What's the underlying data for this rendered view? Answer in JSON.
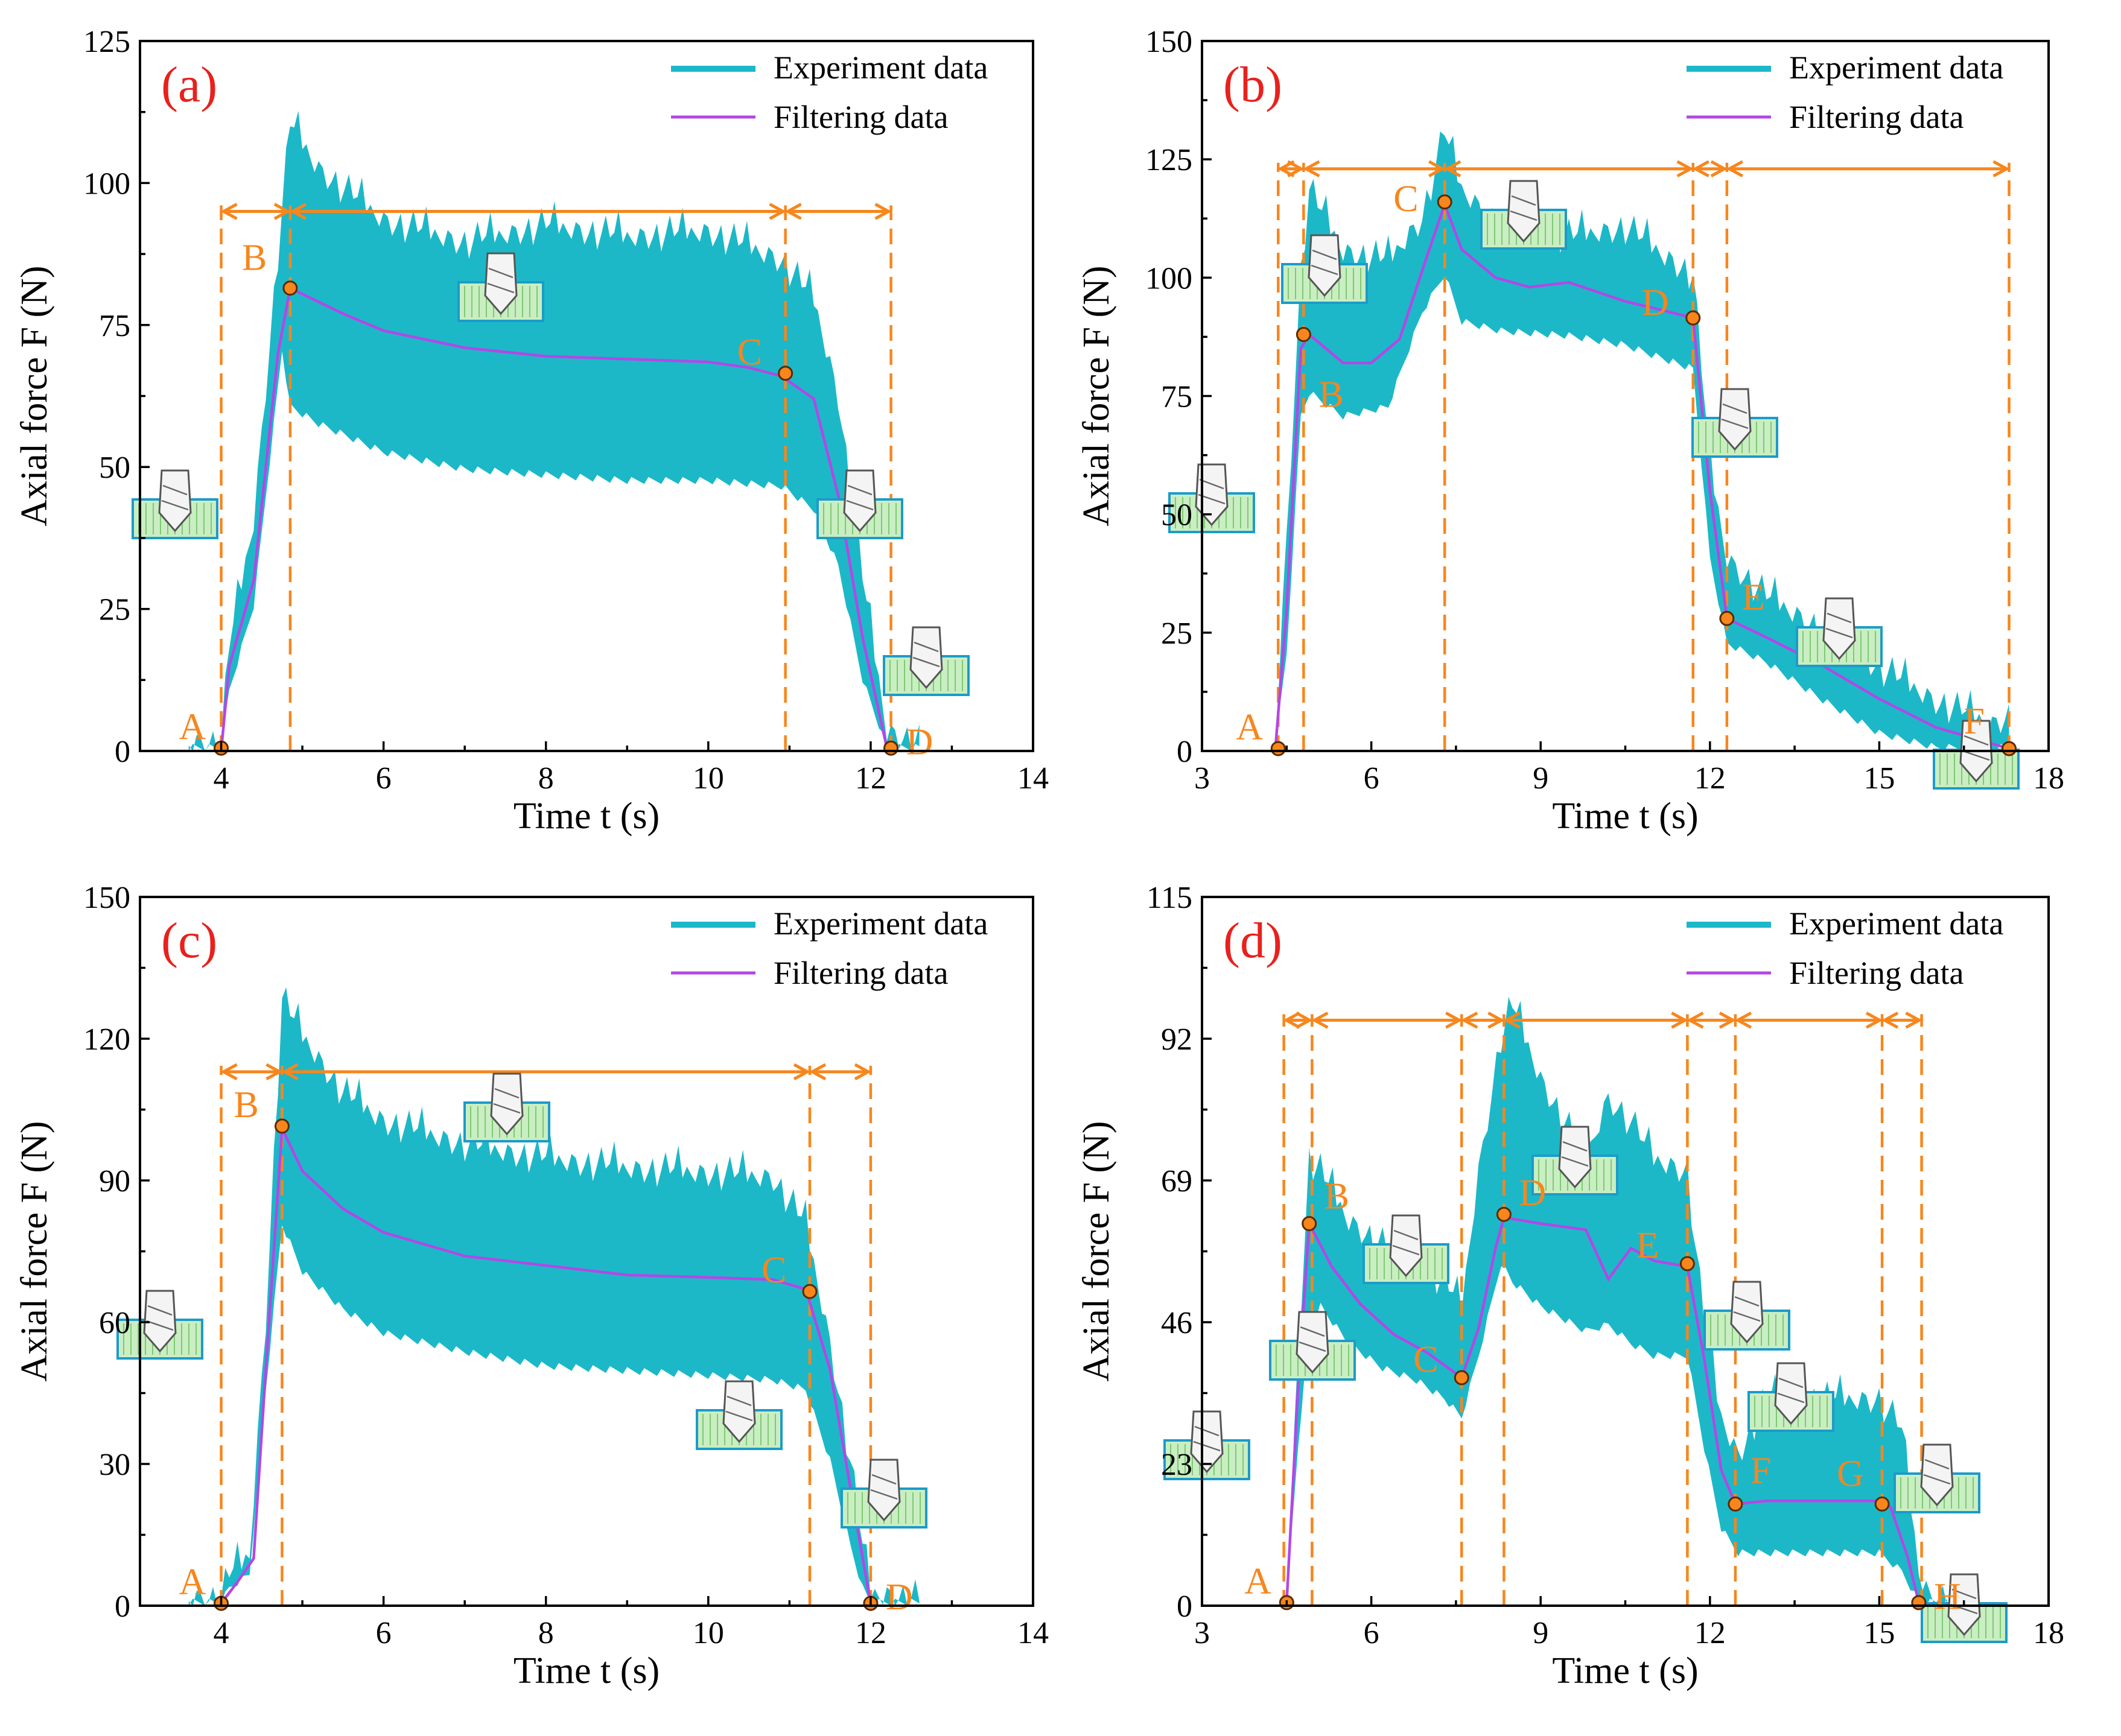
{
  "colors": {
    "experiment": "#1cb8c8",
    "filtering": "#b347e6",
    "annotation": "#f7861d",
    "panel_label": "#e8211d"
  },
  "chart_data": [
    {
      "panel": "(a)",
      "type": "line",
      "xlabel": "Time t (s)",
      "ylabel": "Axial force F (N)",
      "xlim": [
        3,
        14
      ],
      "ylim": [
        0,
        125
      ],
      "xticks": [
        4,
        6,
        8,
        10,
        12,
        14
      ],
      "yticks": [
        0,
        25,
        50,
        75,
        100,
        125
      ],
      "legend": [
        "Experiment data",
        "Filtering data"
      ],
      "series": [
        {
          "name": "Experiment data",
          "x": [
            3.6,
            4.0,
            4.1,
            4.4,
            4.75,
            4.85,
            5.2,
            6,
            7,
            8,
            9,
            10,
            10.9,
            11.3,
            11.6,
            11.9,
            12.2,
            12.6
          ],
          "upper": [
            1,
            1,
            18,
            40,
            95,
            110,
            102,
            93,
            89,
            92,
            90,
            91,
            86,
            79,
            62,
            30,
            3,
            1
          ],
          "lower": [
            0,
            0,
            10,
            25,
            70,
            60,
            57,
            52,
            49,
            48,
            47,
            47,
            46,
            42,
            32,
            12,
            0,
            0
          ]
        },
        {
          "name": "Filtering data",
          "x": [
            4.0,
            4.1,
            4.4,
            4.7,
            4.85,
            5.5,
            6,
            7,
            8,
            9,
            10,
            10.5,
            10.9,
            11.3,
            11.6,
            11.9,
            12.2
          ],
          "y": [
            0,
            15,
            30,
            70,
            81.5,
            77,
            74,
            71,
            69.5,
            69,
            68.5,
            67.5,
            66,
            62,
            45,
            20,
            0.5
          ]
        }
      ],
      "points": [
        {
          "label": "A",
          "x": 4.0,
          "y": 0.5
        },
        {
          "label": "B",
          "x": 4.85,
          "y": 81.5
        },
        {
          "label": "C",
          "x": 10.95,
          "y": 66.5
        },
        {
          "label": "D",
          "x": 12.25,
          "y": 0.5
        }
      ],
      "stage_boundaries": [
        4.0,
        4.85,
        10.95,
        12.25
      ],
      "arrow_level": 95
    },
    {
      "panel": "(b)",
      "type": "line",
      "xlabel": "Time t (s)",
      "ylabel": "Axial force F (N)",
      "xlim": [
        3,
        18
      ],
      "ylim": [
        0,
        150
      ],
      "xticks": [
        3,
        6,
        9,
        12,
        15,
        18
      ],
      "yticks": [
        0,
        25,
        50,
        75,
        100,
        125,
        150
      ],
      "legend": [
        "Experiment data",
        "Filtering data"
      ],
      "series": [
        {
          "name": "Experiment data",
          "x": [
            4.3,
            4.5,
            4.75,
            4.9,
            5.5,
            6.3,
            6.9,
            7.3,
            7.6,
            8.3,
            9.5,
            10.5,
            11.2,
            11.7,
            12.0,
            12.3,
            13,
            14,
            15,
            16,
            17,
            17.3
          ],
          "upper": [
            2,
            45,
            100,
            118,
            105,
            103,
            112,
            130,
            118,
            110,
            108,
            110,
            104,
            100,
            60,
            40,
            32,
            25,
            17,
            10,
            5,
            7
          ],
          "lower": [
            0,
            20,
            70,
            75,
            70,
            72,
            92,
            100,
            90,
            88,
            87,
            85,
            82,
            80,
            40,
            22,
            18,
            10,
            3,
            0,
            0,
            0
          ]
        },
        {
          "name": "Filtering data",
          "x": [
            4.3,
            4.5,
            4.75,
            4.9,
            5.5,
            6,
            6.5,
            7.0,
            7.3,
            7.6,
            8.2,
            8.8,
            9.5,
            10.5,
            11.2,
            11.7,
            12.0,
            12.3,
            13,
            14,
            15,
            16,
            17.3
          ],
          "y": [
            0.5,
            30,
            85,
            88,
            82,
            82,
            87,
            105,
            115.5,
            106,
            100,
            98,
            99,
            95,
            93,
            91.5,
            55,
            28,
            24,
            18,
            11,
            5,
            0.5
          ]
        }
      ],
      "points": [
        {
          "label": "A",
          "x": 4.35,
          "y": 0.5
        },
        {
          "label": "B",
          "x": 4.8,
          "y": 88
        },
        {
          "label": "C",
          "x": 7.3,
          "y": 116
        },
        {
          "label": "D",
          "x": 11.7,
          "y": 91.5
        },
        {
          "label": "E",
          "x": 12.3,
          "y": 28
        },
        {
          "label": "F",
          "x": 17.3,
          "y": 0.5
        }
      ],
      "stage_boundaries": [
        4.35,
        4.8,
        7.3,
        11.7,
        12.3,
        17.3
      ],
      "arrow_level": 123
    },
    {
      "panel": "(c)",
      "type": "line",
      "xlabel": "Time t (s)",
      "ylabel": "Axial force F (N)",
      "xlim": [
        3,
        14
      ],
      "ylim": [
        0,
        150
      ],
      "xticks": [
        4,
        6,
        8,
        10,
        12,
        14
      ],
      "yticks": [
        0,
        30,
        60,
        90,
        120,
        150
      ],
      "legend": [
        "Experiment data",
        "Filtering data"
      ],
      "series": [
        {
          "name": "Experiment data",
          "x": [
            3.6,
            4.0,
            4.1,
            4.35,
            4.55,
            4.75,
            5.0,
            5.5,
            6,
            7,
            8,
            9,
            10,
            10.8,
            11.2,
            11.5,
            11.75,
            11.9,
            12.0,
            12.6
          ],
          "upper": [
            1,
            1,
            6,
            10,
            60,
            128,
            120,
            108,
            102,
            97,
            94,
            92,
            91,
            90,
            80,
            55,
            30,
            12,
            2,
            1
          ],
          "lower": [
            0,
            0,
            3,
            6,
            45,
            80,
            70,
            62,
            57,
            53,
            50,
            49,
            48,
            47,
            45,
            30,
            12,
            3,
            0,
            0
          ]
        },
        {
          "name": "Filtering data",
          "x": [
            4.0,
            4.2,
            4.4,
            4.55,
            4.75,
            5.0,
            5.5,
            6,
            7,
            8,
            9,
            10,
            10.8,
            11.2,
            11.5,
            11.8,
            12.0
          ],
          "y": [
            0.5,
            5,
            10,
            50,
            101,
            92,
            84,
            79,
            74,
            72,
            70,
            69.5,
            69,
            67,
            50,
            20,
            0.5
          ]
        }
      ],
      "points": [
        {
          "label": "A",
          "x": 4.0,
          "y": 0.5
        },
        {
          "label": "B",
          "x": 4.75,
          "y": 101.5
        },
        {
          "label": "C",
          "x": 11.25,
          "y": 66.5
        },
        {
          "label": "D",
          "x": 12.0,
          "y": 0.5
        }
      ],
      "stage_boundaries": [
        4.0,
        4.75,
        11.25,
        12.0
      ],
      "arrow_level": 113
    },
    {
      "panel": "(d)",
      "type": "line",
      "xlabel": "Time t (s)",
      "ylabel": "Axial force F (N)",
      "xlim": [
        3,
        18
      ],
      "ylim": [
        0,
        115
      ],
      "xticks": [
        3,
        6,
        9,
        12,
        15,
        18
      ],
      "yticks": [
        0,
        23,
        46,
        69,
        92,
        115
      ],
      "legend": [
        "Experiment data",
        "Filtering data"
      ],
      "series": [
        {
          "name": "Experiment data",
          "x": [
            4.5,
            4.7,
            4.9,
            5.1,
            5.6,
            6.2,
            6.8,
            7.3,
            7.6,
            7.9,
            8.3,
            8.5,
            9.0,
            9.8,
            10.2,
            10.6,
            11.0,
            11.6,
            11.9,
            12.2,
            12.5,
            13,
            14,
            15,
            15.4,
            15.7,
            15.9,
            16.2
          ],
          "upper": [
            1,
            40,
            72,
            70,
            62,
            58,
            55,
            52,
            48,
            70,
            92,
            97,
            85,
            72,
            82,
            78,
            72,
            70,
            45,
            30,
            24,
            33,
            33,
            33,
            28,
            5,
            1,
            1
          ],
          "lower": [
            0,
            25,
            45,
            48,
            42,
            38,
            36,
            33,
            30,
            40,
            55,
            52,
            48,
            44,
            45,
            42,
            40,
            40,
            25,
            12,
            8,
            8,
            8,
            8,
            5,
            0,
            0,
            0
          ]
        },
        {
          "name": "Filtering data",
          "x": [
            4.5,
            4.7,
            4.9,
            5.3,
            5.8,
            6.4,
            7.0,
            7.6,
            7.9,
            8.2,
            8.35,
            9.0,
            9.8,
            10.2,
            10.6,
            11.0,
            11.6,
            11.9,
            12.2,
            12.45,
            13,
            14,
            15,
            15.2,
            15.5,
            15.7
          ],
          "y": [
            0.5,
            35,
            62,
            55,
            49,
            44,
            41,
            37,
            45,
            58,
            63,
            62,
            61,
            53,
            58,
            56,
            55,
            40,
            22,
            16.5,
            17,
            17,
            17,
            16,
            8,
            0.5
          ]
        }
      ],
      "points": [
        {
          "label": "A",
          "x": 4.5,
          "y": 0.5
        },
        {
          "label": "B",
          "x": 4.9,
          "y": 62
        },
        {
          "label": "C",
          "x": 7.6,
          "y": 37
        },
        {
          "label": "D",
          "x": 8.35,
          "y": 63.5
        },
        {
          "label": "E",
          "x": 11.6,
          "y": 55.5
        },
        {
          "label": "F",
          "x": 12.45,
          "y": 16.5
        },
        {
          "label": "G",
          "x": 15.05,
          "y": 16.5
        },
        {
          "label": "H",
          "x": 15.7,
          "y": 0.5
        }
      ],
      "stage_boundaries": [
        4.45,
        4.95,
        7.6,
        8.35,
        11.6,
        12.45,
        15.05,
        15.75
      ],
      "arrow_level": 95
    }
  ]
}
